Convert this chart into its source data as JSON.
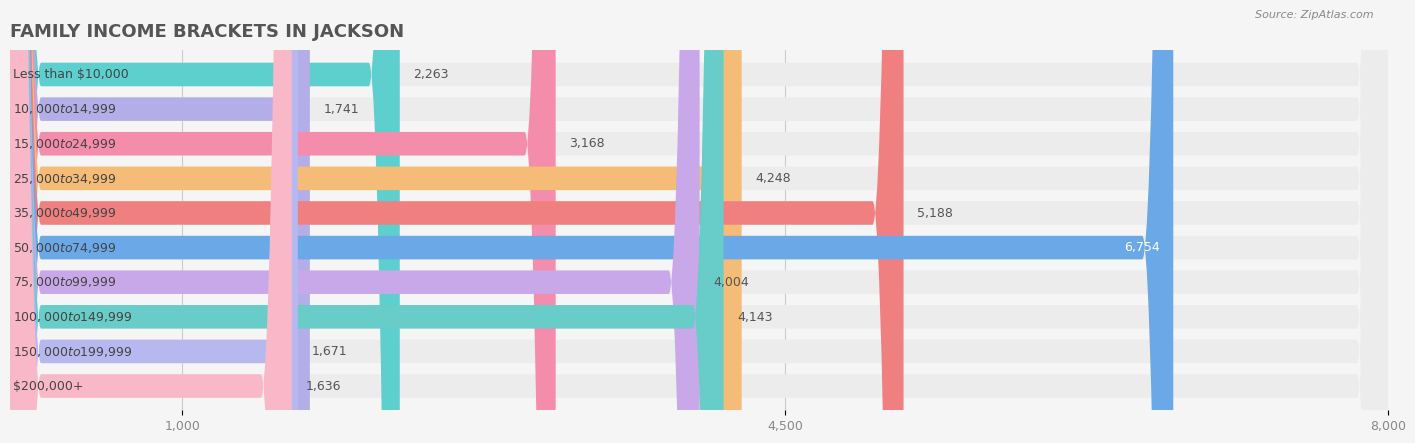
{
  "title": "FAMILY INCOME BRACKETS IN JACKSON",
  "source": "Source: ZipAtlas.com",
  "categories": [
    "Less than $10,000",
    "$10,000 to $14,999",
    "$15,000 to $24,999",
    "$25,000 to $34,999",
    "$35,000 to $49,999",
    "$50,000 to $74,999",
    "$75,000 to $99,999",
    "$100,000 to $149,999",
    "$150,000 to $199,999",
    "$200,000+"
  ],
  "values": [
    2263,
    1741,
    3168,
    4248,
    5188,
    6754,
    4004,
    4143,
    1671,
    1636
  ],
  "bar_colors": [
    "#5ecfcf",
    "#b3aee8",
    "#f48cac",
    "#f5bc78",
    "#f08080",
    "#6aa8e8",
    "#c8a8e8",
    "#68ccc8",
    "#b8b8f0",
    "#f8b8c8"
  ],
  "label_colors": [
    "#555555",
    "#555555",
    "#555555",
    "#555555",
    "#555555",
    "#ffffff",
    "#555555",
    "#555555",
    "#555555",
    "#555555"
  ],
  "xlim": [
    0,
    8000
  ],
  "xticks": [
    1000,
    4500,
    8000
  ],
  "background_color": "#f5f5f5",
  "bar_bg_color": "#ececec",
  "title_fontsize": 13,
  "label_fontsize": 9,
  "value_fontsize": 9
}
